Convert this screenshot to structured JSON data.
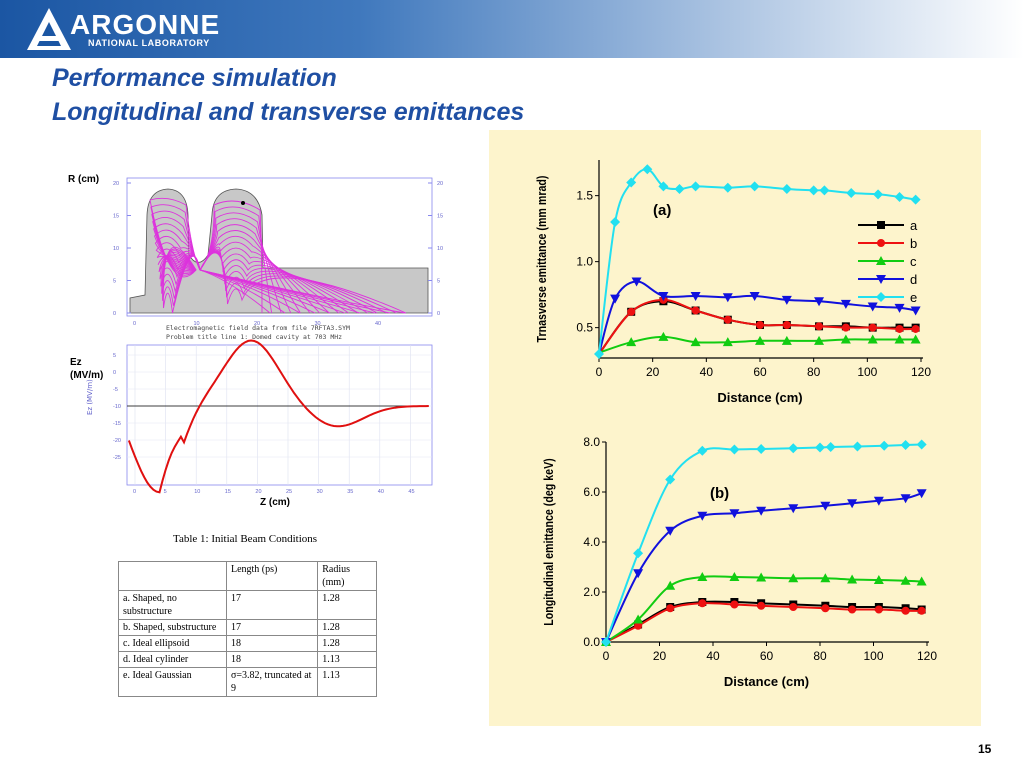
{
  "logo": {
    "word": "ARGONNE",
    "subtitle": "NATIONAL LABORATORY"
  },
  "title": {
    "line1": "Performance simulation",
    "line2": "Longitudinal and transverse emittances"
  },
  "page_number": "15",
  "left_figure": {
    "r_label": "R (cm)",
    "ez_label_1": "Ez",
    "ez_label_2": "(MV/m)",
    "z_label": "Z (cm)",
    "caption_line1": "Electromagnetic field data from file 7RFTA3.SYM",
    "caption_line2": "Problem title line 1: Domed cavity at 703 MHz",
    "r_ticks": [
      "20",
      "15",
      "10",
      "5",
      "0"
    ],
    "z_ticks_top": [
      "0",
      "10",
      "20",
      "30",
      "40"
    ],
    "ez_ticks": [
      "5",
      "0",
      "-5",
      "-10",
      "-15",
      "-20",
      "-25"
    ],
    "z_ticks_bottom": [
      "0",
      "5",
      "10",
      "15",
      "20",
      "25",
      "30",
      "35",
      "40",
      "45"
    ],
    "ez_axis_label": "Ez (MV/m)"
  },
  "table": {
    "caption": "Table 1: Initial Beam Conditions",
    "headers": [
      "",
      "Length (ps)",
      "Radius (mm)"
    ],
    "rows": [
      [
        "a. Shaped, no substructure",
        "17",
        "1.28"
      ],
      [
        "b. Shaped, substructure",
        "17",
        "1.28"
      ],
      [
        "c. Ideal ellipsoid",
        "18",
        "1.28"
      ],
      [
        "d. Ideal cylinder",
        "18",
        "1.13"
      ],
      [
        "e. Ideal Gaussian",
        "σ=3.82, truncated at 9",
        "1.13"
      ]
    ]
  },
  "colors": {
    "a": "#000000",
    "b": "#ee1111",
    "c": "#11cc11",
    "d": "#1111dd",
    "e": "#22e0f0",
    "panel_bg": "#fdf4cc",
    "title": "#1f4fa3"
  },
  "chart_data": [
    {
      "type": "line",
      "title": "(a)",
      "xlabel": "Distance (cm)",
      "ylabel": "Trnasverse emittance (mm mrad)",
      "xlim": [
        0,
        120
      ],
      "ylim": [
        0.27,
        1.77
      ],
      "xticks": [
        "0",
        "20",
        "40",
        "60",
        "80",
        "100",
        "120"
      ],
      "yticks": [
        "0.5",
        "1.0",
        "1.5"
      ],
      "legend": "right",
      "series": [
        {
          "name": "a",
          "color": "#000000",
          "marker": "square",
          "x": [
            0,
            12,
            24,
            36,
            48,
            60,
            70,
            82,
            92,
            102,
            112,
            118
          ],
          "y": [
            0.3,
            0.62,
            0.7,
            0.63,
            0.56,
            0.52,
            0.52,
            0.51,
            0.51,
            0.5,
            0.5,
            0.5
          ]
        },
        {
          "name": "b",
          "color": "#ee1111",
          "marker": "circle",
          "x": [
            0,
            12,
            24,
            36,
            48,
            60,
            70,
            82,
            92,
            102,
            112,
            118
          ],
          "y": [
            0.3,
            0.62,
            0.71,
            0.63,
            0.56,
            0.52,
            0.52,
            0.51,
            0.5,
            0.5,
            0.49,
            0.49
          ]
        },
        {
          "name": "c",
          "color": "#11cc11",
          "marker": "triangle-up",
          "x": [
            0,
            12,
            24,
            36,
            48,
            60,
            70,
            82,
            92,
            102,
            112,
            118
          ],
          "y": [
            0.31,
            0.39,
            0.43,
            0.39,
            0.39,
            0.4,
            0.4,
            0.4,
            0.41,
            0.41,
            0.41,
            0.41
          ]
        },
        {
          "name": "d",
          "color": "#1111dd",
          "marker": "triangle-down",
          "x": [
            0,
            6,
            14,
            24,
            36,
            48,
            58,
            70,
            82,
            92,
            102,
            112,
            118
          ],
          "y": [
            0.3,
            0.72,
            0.85,
            0.74,
            0.74,
            0.73,
            0.74,
            0.71,
            0.7,
            0.68,
            0.66,
            0.65,
            0.63
          ]
        },
        {
          "name": "e",
          "color": "#22e0f0",
          "marker": "diamond",
          "x": [
            0,
            6,
            12,
            18,
            24,
            30,
            36,
            48,
            58,
            70,
            80,
            84,
            94,
            104,
            112,
            118
          ],
          "y": [
            0.3,
            1.3,
            1.6,
            1.7,
            1.57,
            1.55,
            1.57,
            1.56,
            1.57,
            1.55,
            1.54,
            1.54,
            1.52,
            1.51,
            1.49,
            1.47
          ]
        }
      ]
    },
    {
      "type": "line",
      "title": "(b)",
      "xlabel": "Distance (cm)",
      "ylabel": "Longitudinal emittance (deg keV)",
      "xlim": [
        0,
        120
      ],
      "ylim": [
        0,
        8
      ],
      "xticks": [
        "0",
        "20",
        "40",
        "60",
        "80",
        "100",
        "120"
      ],
      "yticks": [
        "0.0",
        "2.0",
        "4.0",
        "6.0",
        "8.0"
      ],
      "series": [
        {
          "name": "a",
          "color": "#000000",
          "marker": "square",
          "x": [
            0,
            12,
            24,
            36,
            48,
            58,
            70,
            82,
            92,
            102,
            112,
            118
          ],
          "y": [
            0.0,
            0.7,
            1.4,
            1.6,
            1.6,
            1.55,
            1.5,
            1.45,
            1.4,
            1.4,
            1.35,
            1.3
          ]
        },
        {
          "name": "b",
          "color": "#ee1111",
          "marker": "circle",
          "x": [
            0,
            12,
            24,
            36,
            48,
            58,
            70,
            82,
            92,
            102,
            112,
            118
          ],
          "y": [
            0.0,
            0.65,
            1.35,
            1.55,
            1.5,
            1.45,
            1.4,
            1.35,
            1.3,
            1.3,
            1.25,
            1.25
          ]
        },
        {
          "name": "c",
          "color": "#11cc11",
          "marker": "triangle-up",
          "x": [
            0,
            12,
            24,
            36,
            48,
            58,
            70,
            82,
            92,
            102,
            112,
            118
          ],
          "y": [
            0.0,
            0.9,
            2.25,
            2.6,
            2.6,
            2.58,
            2.55,
            2.55,
            2.5,
            2.48,
            2.45,
            2.42
          ]
        },
        {
          "name": "d",
          "color": "#1111dd",
          "marker": "triangle-down",
          "x": [
            0,
            12,
            24,
            36,
            48,
            58,
            70,
            82,
            92,
            102,
            112,
            118
          ],
          "y": [
            0.0,
            2.75,
            4.45,
            5.05,
            5.15,
            5.25,
            5.35,
            5.45,
            5.55,
            5.65,
            5.75,
            5.95
          ]
        },
        {
          "name": "e",
          "color": "#22e0f0",
          "marker": "diamond",
          "x": [
            0,
            12,
            24,
            36,
            48,
            58,
            70,
            80,
            84,
            94,
            104,
            112,
            118
          ],
          "y": [
            0.0,
            3.55,
            6.5,
            7.65,
            7.7,
            7.72,
            7.75,
            7.78,
            7.8,
            7.82,
            7.85,
            7.88,
            7.9
          ]
        }
      ]
    }
  ]
}
